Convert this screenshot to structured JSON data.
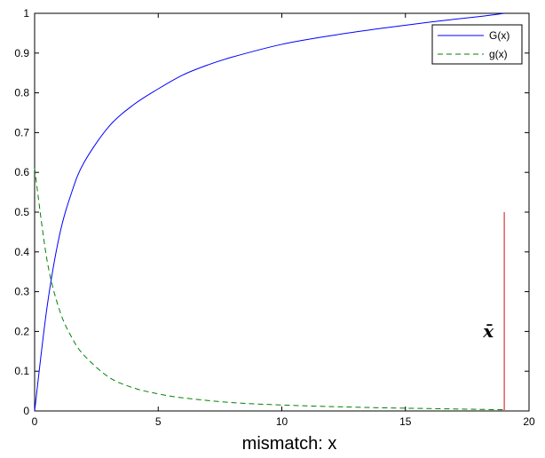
{
  "chart_data": {
    "type": "line",
    "title": "",
    "xlabel": "mismatch: x",
    "ylabel": "",
    "xlim": [
      0,
      20
    ],
    "ylim": [
      0,
      1
    ],
    "xticks": [
      "0",
      "5",
      "10",
      "15",
      "20"
    ],
    "yticks": [
      "0",
      "0.1",
      "0.2",
      "0.3",
      "0.4",
      "0.5",
      "0.6",
      "0.7",
      "0.8",
      "0.9",
      "1"
    ],
    "grid": false,
    "legend_position": "top-right",
    "series": [
      {
        "name": "G(x)",
        "color": "#0000ff",
        "style": "solid",
        "x": [
          0,
          0.5,
          1,
          1.5,
          2,
          3,
          4,
          5,
          6,
          7,
          8,
          10,
          12,
          14,
          16,
          18,
          19
        ],
        "y": [
          0,
          0.26,
          0.44,
          0.55,
          0.625,
          0.715,
          0.77,
          0.81,
          0.845,
          0.87,
          0.89,
          0.922,
          0.944,
          0.962,
          0.978,
          0.992,
          1.0
        ]
      },
      {
        "name": "g(x)",
        "color": "#008000",
        "style": "dashed",
        "x": [
          0,
          0.5,
          1,
          1.5,
          2,
          3,
          4,
          5,
          6,
          8,
          10,
          12,
          14,
          16,
          18,
          19
        ],
        "y": [
          0.61,
          0.38,
          0.255,
          0.185,
          0.14,
          0.085,
          0.058,
          0.043,
          0.033,
          0.021,
          0.015,
          0.011,
          0.008,
          0.006,
          0.004,
          0.003
        ]
      }
    ],
    "marker": {
      "label": "x̄",
      "x": 19,
      "y0": 0,
      "y1": 0.5,
      "color": "#e06060"
    }
  }
}
